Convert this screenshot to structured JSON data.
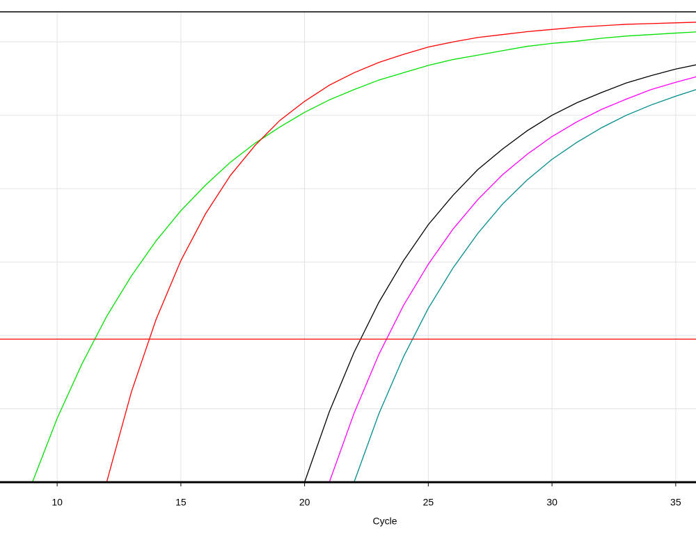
{
  "chart_data": {
    "type": "line",
    "x_label": "Cycle",
    "x": [
      8,
      9,
      10,
      11,
      12,
      13,
      14,
      15,
      16,
      17,
      18,
      19,
      20,
      21,
      22,
      23,
      24,
      25,
      26,
      27,
      28,
      29,
      30,
      31,
      32,
      33,
      34,
      35,
      36
    ],
    "series": [
      {
        "color": "#00e000",
        "values": [
          null,
          0,
          0.87,
          1.61,
          2.26,
          2.81,
          3.29,
          3.7,
          4.05,
          4.36,
          4.62,
          4.84,
          5.04,
          5.21,
          5.35,
          5.48,
          5.58,
          5.68,
          5.76,
          5.82,
          5.88,
          5.94,
          5.98,
          6.01,
          6.05,
          6.08,
          6.1,
          6.12,
          6.14
        ]
      },
      {
        "color": "#ff0000",
        "values": [
          null,
          null,
          null,
          null,
          0,
          1.23,
          2.22,
          3.02,
          3.66,
          4.18,
          4.59,
          4.93,
          5.19,
          5.41,
          5.58,
          5.72,
          5.83,
          5.93,
          6.0,
          6.06,
          6.1,
          6.14,
          6.17,
          6.2,
          6.22,
          6.24,
          6.25,
          6.26,
          6.27
        ]
      },
      {
        "color": "#000000",
        "values": [
          null,
          null,
          null,
          null,
          null,
          null,
          null,
          null,
          null,
          null,
          null,
          null,
          0,
          0.96,
          1.77,
          2.45,
          3.02,
          3.51,
          3.91,
          4.26,
          4.54,
          4.79,
          5.0,
          5.17,
          5.31,
          5.44,
          5.54,
          5.63,
          5.7
        ]
      },
      {
        "color": "#ff00ff",
        "values": [
          null,
          null,
          null,
          null,
          null,
          null,
          null,
          null,
          null,
          null,
          null,
          null,
          null,
          0,
          0.94,
          1.74,
          2.41,
          2.97,
          3.45,
          3.85,
          4.19,
          4.47,
          4.71,
          4.91,
          5.08,
          5.22,
          5.35,
          5.45,
          5.54
        ]
      },
      {
        "color": "#008b8b",
        "values": [
          null,
          null,
          null,
          null,
          null,
          null,
          null,
          null,
          null,
          null,
          null,
          null,
          null,
          null,
          0,
          0.93,
          1.71,
          2.37,
          2.92,
          3.39,
          3.79,
          4.12,
          4.4,
          4.63,
          4.83,
          5.0,
          5.14,
          5.26,
          5.37
        ]
      }
    ],
    "threshold": 1.95,
    "threshold_color": "#ff0000",
    "xlim": [
      7.69,
      35.82
    ],
    "xticks": [
      10,
      15,
      20,
      25,
      30,
      35
    ],
    "ylim": [
      0,
      6.41
    ],
    "yticks": [
      0,
      1,
      2,
      3,
      4,
      5,
      6
    ],
    "grid": true
  }
}
